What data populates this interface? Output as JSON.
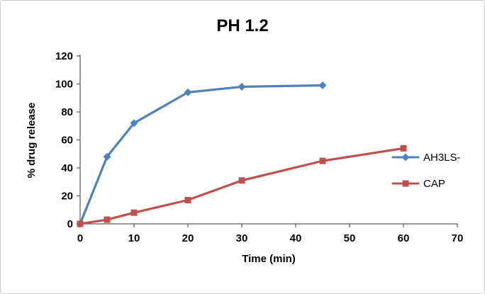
{
  "chart_data": {
    "type": "line",
    "title": "PH 1.2",
    "xlabel": "Time (min)",
    "ylabel": "% drug release",
    "xlim": [
      0,
      70
    ],
    "ylim": [
      0,
      120
    ],
    "xticks": [
      0,
      10,
      20,
      30,
      40,
      50,
      60,
      70
    ],
    "yticks": [
      0,
      20,
      40,
      60,
      80,
      100,
      120
    ],
    "grid": false,
    "legend_position": "right",
    "axis_color": "#595959",
    "series": [
      {
        "name": "AH3LS-",
        "color": "#4F81BD",
        "marker": "diamond",
        "x": [
          0,
          5,
          10,
          20,
          30,
          45
        ],
        "y": [
          0,
          48,
          72,
          94,
          98,
          99
        ]
      },
      {
        "name": "CAP",
        "color": "#C0504D",
        "marker": "square",
        "x": [
          0,
          5,
          10,
          20,
          30,
          45,
          60
        ],
        "y": [
          0,
          3,
          8,
          17,
          31,
          45,
          54
        ]
      }
    ]
  }
}
